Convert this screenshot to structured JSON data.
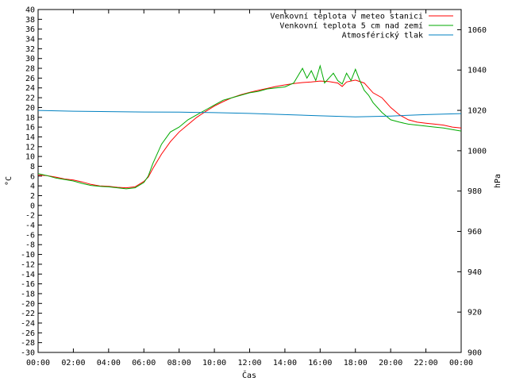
{
  "chart_data": {
    "type": "line",
    "xlabel": "Čas",
    "ylabel_left": "°C",
    "ylabel_right": "hPa",
    "ylim_left": [
      -30,
      40
    ],
    "ylim_right": [
      900,
      1070
    ],
    "xlim_hours": [
      0,
      24
    ],
    "x_ticks": [
      "00:00",
      "02:00",
      "04:00",
      "06:00",
      "08:00",
      "10:00",
      "12:00",
      "14:00",
      "16:00",
      "18:00",
      "20:00",
      "22:00",
      "00:00"
    ],
    "y_ticks_left": [
      40,
      38,
      36,
      34,
      32,
      30,
      28,
      26,
      24,
      22,
      20,
      18,
      16,
      14,
      12,
      10,
      8,
      6,
      4,
      2,
      0,
      -2,
      -4,
      -6,
      -8,
      -10,
      -12,
      -14,
      -16,
      -18,
      -20,
      -22,
      -24,
      -26,
      -28,
      -30
    ],
    "y_ticks_right": [
      1060,
      1040,
      1020,
      1000,
      980,
      960,
      940,
      920,
      900
    ],
    "legend_position": "top-right",
    "grid": false,
    "series": [
      {
        "name": "Venkovní teplota v meteo stanici",
        "color": "#ff0000",
        "axis": "left",
        "x": [
          0,
          0.5,
          1,
          1.5,
          2,
          2.5,
          3,
          3.5,
          4,
          4.5,
          5,
          5.5,
          6,
          6.25,
          6.5,
          7,
          7.5,
          8,
          8.5,
          9,
          9.5,
          10,
          10.5,
          11,
          11.5,
          12,
          12.5,
          13,
          13.5,
          14,
          14.5,
          15,
          15.5,
          16,
          16.5,
          17,
          17.25,
          17.5,
          18,
          18.5,
          19,
          19.5,
          20,
          20.5,
          21,
          21.5,
          22,
          22.5,
          23,
          23.5,
          24
        ],
        "y": [
          6.2,
          6.1,
          5.8,
          5.4,
          5.2,
          4.8,
          4.3,
          4.0,
          3.9,
          3.7,
          3.6,
          3.8,
          4.9,
          5.8,
          7.5,
          10.5,
          13.0,
          15.0,
          16.5,
          18.0,
          19.2,
          20.3,
          21.2,
          22.0,
          22.6,
          23.1,
          23.5,
          23.9,
          24.3,
          24.6,
          24.9,
          25.1,
          25.2,
          25.4,
          25.3,
          25.0,
          24.3,
          25.2,
          25.6,
          25.0,
          23.0,
          22.0,
          20.0,
          18.5,
          17.5,
          17.0,
          16.8,
          16.6,
          16.4,
          16.0,
          15.8
        ]
      },
      {
        "name": "Venkovní teplota 5 cm nad zemí",
        "color": "#00aa00",
        "axis": "left",
        "x": [
          0,
          0.5,
          1,
          1.5,
          2,
          2.5,
          3,
          3.5,
          4,
          4.5,
          5,
          5.5,
          6,
          6.25,
          6.5,
          7,
          7.5,
          8,
          8.5,
          9,
          9.5,
          10,
          10.5,
          11,
          11.5,
          12,
          12.5,
          13,
          13.5,
          14,
          14.5,
          14.75,
          15,
          15.25,
          15.5,
          15.75,
          16,
          16.25,
          16.5,
          16.75,
          17,
          17.25,
          17.5,
          17.75,
          18,
          18.25,
          18.5,
          18.75,
          19,
          19.5,
          20,
          20.5,
          21,
          21.5,
          22,
          22.5,
          23,
          23.5,
          24
        ],
        "y": [
          6.5,
          6.1,
          5.6,
          5.3,
          5.0,
          4.5,
          4.1,
          3.9,
          3.8,
          3.6,
          3.4,
          3.6,
          4.7,
          6.0,
          8.5,
          12.5,
          15.0,
          16.0,
          17.5,
          18.5,
          19.5,
          20.5,
          21.5,
          22.0,
          22.5,
          23.0,
          23.3,
          23.8,
          24.0,
          24.2,
          25.0,
          26.5,
          28.0,
          26.0,
          27.5,
          25.5,
          28.5,
          25.0,
          26.0,
          27.0,
          25.5,
          24.8,
          27.0,
          25.5,
          27.8,
          25.5,
          23.5,
          22.5,
          21.0,
          19.0,
          17.5,
          17.0,
          16.6,
          16.4,
          16.2,
          16.0,
          15.8,
          15.5,
          15.2
        ]
      },
      {
        "name": "Atmosférický tlak",
        "color": "#0080c0",
        "axis": "right",
        "x": [
          0,
          2,
          4,
          6,
          8,
          10,
          12,
          14,
          16,
          18,
          20,
          22,
          24
        ],
        "y": [
          1020.0,
          1019.6,
          1019.4,
          1019.2,
          1019.1,
          1018.9,
          1018.5,
          1017.9,
          1017.3,
          1016.8,
          1017.2,
          1017.9,
          1018.4
        ]
      }
    ]
  }
}
